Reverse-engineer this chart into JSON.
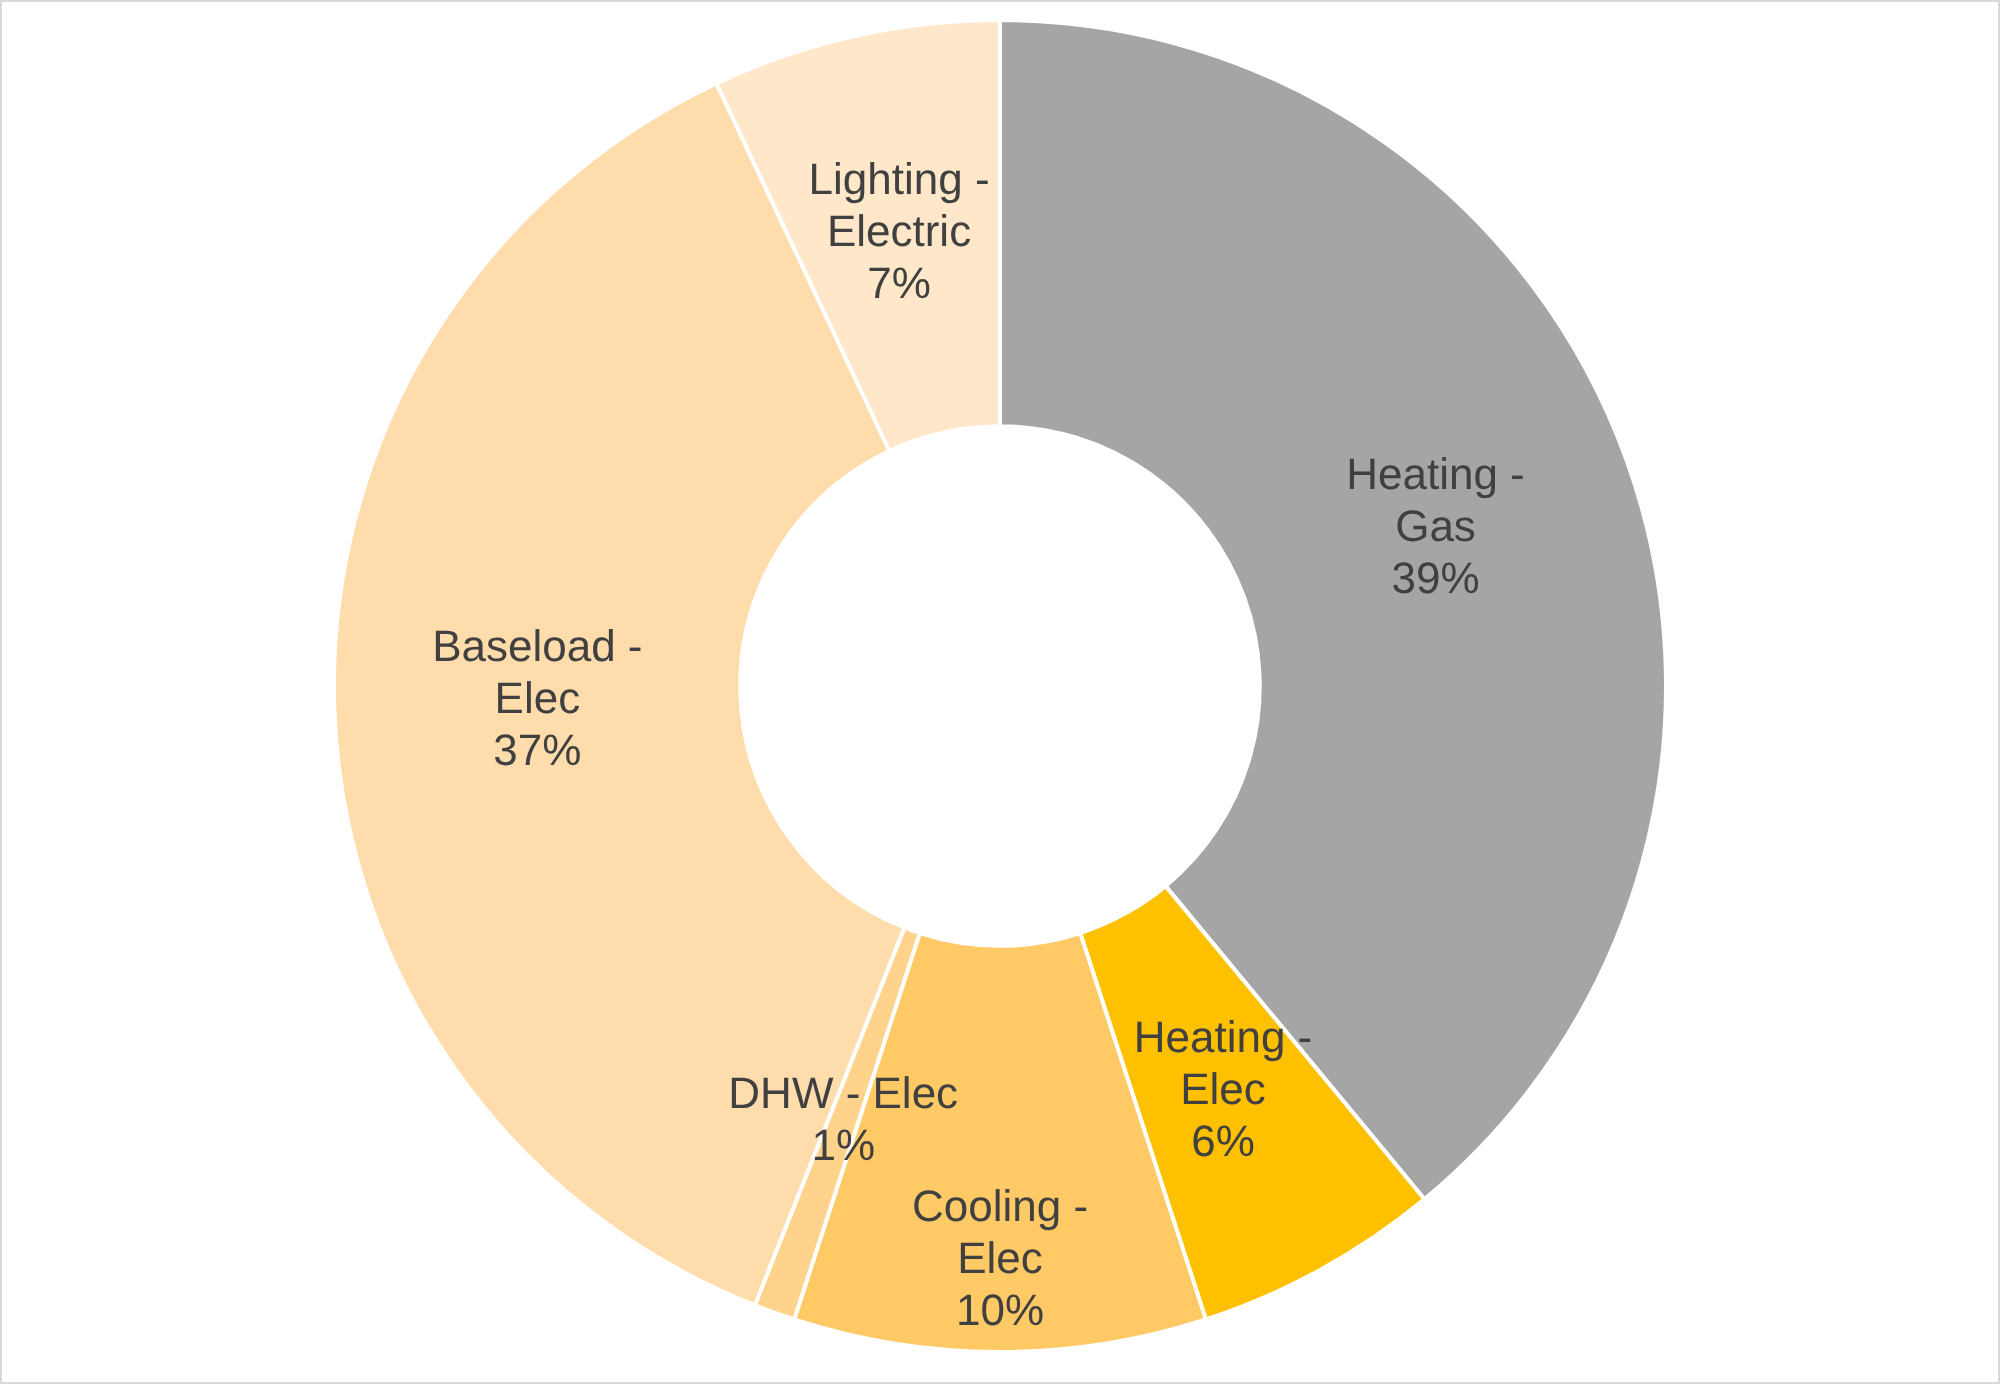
{
  "chart_data": {
    "type": "donut",
    "categories": [
      "Heating - Gas",
      "Heating - Elec",
      "Cooling - Elec",
      "DHW - Elec",
      "Baseload - Elec",
      "Lighting - Electric"
    ],
    "values": [
      39,
      6,
      10,
      1,
      37,
      7
    ],
    "value_labels": [
      "39%",
      "6%",
      "10%",
      "1%",
      "37%",
      "7%"
    ],
    "colors": [
      "#a5a5a5",
      "#ffc000",
      "#ffc966",
      "#ffd38c",
      "#ffdcab",
      "#ffe7c9"
    ],
    "legend": false
  }
}
